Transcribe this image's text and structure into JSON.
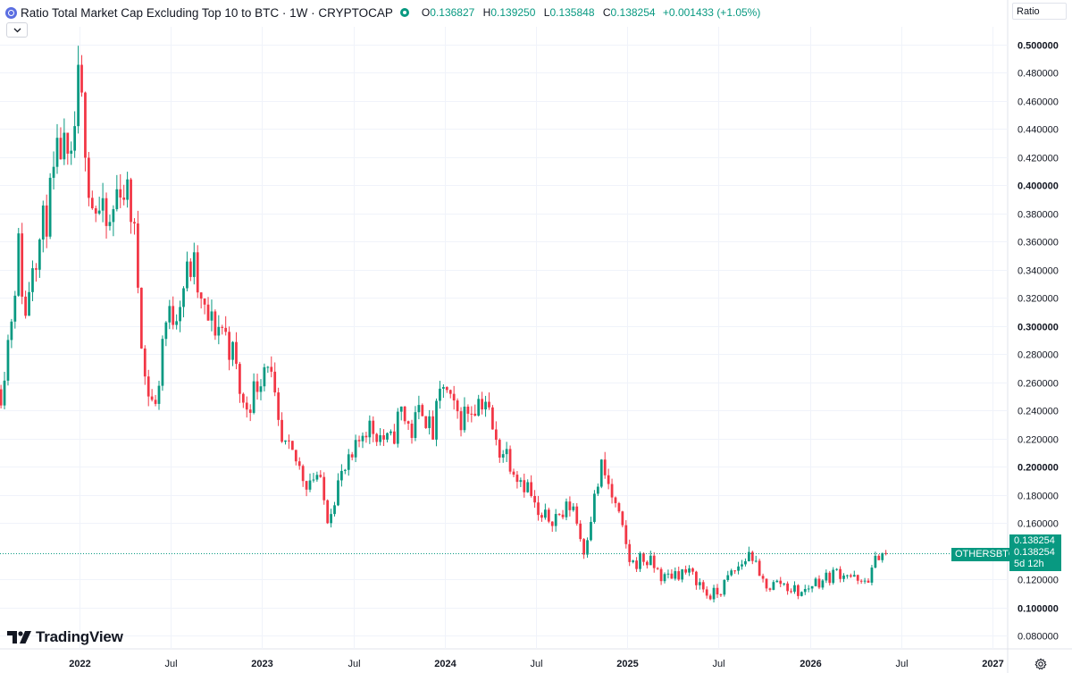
{
  "header": {
    "title": "Ratio Total Market Cap Excluding Top 10 to BTC · 1W · CRYPTOCAP",
    "open_label": "O",
    "open": "0.136827",
    "high_label": "H",
    "high": "0.139250",
    "low_label": "L",
    "low": "0.135848",
    "close_label": "C",
    "close": "0.138254",
    "change": "+0.001433 (+1.05%)",
    "collapse_icon": "chevron-down-icon"
  },
  "scale_button": "Ratio",
  "brand": "TradingView",
  "symbol_label": "OTHERSBTC",
  "last_price": "0.138254",
  "last_price_repeat": "0.138254",
  "countdown": "5d 12h",
  "colors": {
    "up": "#089981",
    "down": "#f23645",
    "grid": "#f0f3fa",
    "text": "#131722"
  },
  "chart_data": {
    "type": "candlestick",
    "interval": "1W",
    "y_ticks": [
      "0.500000",
      "0.480000",
      "0.460000",
      "0.440000",
      "0.420000",
      "0.400000",
      "0.380000",
      "0.360000",
      "0.340000",
      "0.320000",
      "0.300000",
      "0.280000",
      "0.260000",
      "0.240000",
      "0.220000",
      "0.200000",
      "0.180000",
      "0.160000",
      "0.120000",
      "0.100000",
      "0.080000"
    ],
    "y_bold_ticks": [
      "0.500000",
      "0.400000",
      "0.300000",
      "0.200000",
      "0.100000"
    ],
    "ylim": [
      0.075,
      0.505
    ],
    "x_ticks": [
      {
        "label": "2022",
        "t": 2022.0,
        "bold": true
      },
      {
        "label": "Jul",
        "t": 2022.5,
        "bold": false
      },
      {
        "label": "2023",
        "t": 2023.0,
        "bold": true
      },
      {
        "label": "Jul",
        "t": 2023.5,
        "bold": false
      },
      {
        "label": "2024",
        "t": 2024.0,
        "bold": true
      },
      {
        "label": "Jul",
        "t": 2024.5,
        "bold": false
      },
      {
        "label": "2025",
        "t": 2025.0,
        "bold": true
      },
      {
        "label": "Jul",
        "t": 2025.5,
        "bold": false
      },
      {
        "label": "2026",
        "t": 2026.0,
        "bold": true
      },
      {
        "label": "Jul",
        "t": 2026.5,
        "bold": false
      },
      {
        "label": "2027",
        "t": 2027.0,
        "bold": true
      }
    ],
    "xlim": [
      2021.56,
      2027.08
    ],
    "last_close": 0.138254,
    "path_anchors": [
      [
        2021.57,
        0.255
      ],
      [
        2021.62,
        0.3
      ],
      [
        2021.67,
        0.36
      ],
      [
        2021.7,
        0.3
      ],
      [
        2021.74,
        0.35
      ],
      [
        2021.78,
        0.36
      ],
      [
        2021.84,
        0.39
      ],
      [
        2021.9,
        0.43
      ],
      [
        2021.95,
        0.4
      ],
      [
        2021.99,
        0.47
      ],
      [
        2022.03,
        0.44
      ],
      [
        2022.06,
        0.39
      ],
      [
        2022.11,
        0.38
      ],
      [
        2022.16,
        0.365
      ],
      [
        2022.22,
        0.405
      ],
      [
        2022.28,
        0.385
      ],
      [
        2022.31,
        0.35
      ],
      [
        2022.36,
        0.26
      ],
      [
        2022.42,
        0.24
      ],
      [
        2022.46,
        0.3
      ],
      [
        2022.52,
        0.31
      ],
      [
        2022.57,
        0.33
      ],
      [
        2022.62,
        0.345
      ],
      [
        2022.67,
        0.31
      ],
      [
        2022.73,
        0.3
      ],
      [
        2022.78,
        0.3
      ],
      [
        2022.84,
        0.28
      ],
      [
        2022.9,
        0.24
      ],
      [
        2022.96,
        0.255
      ],
      [
        2023.03,
        0.28
      ],
      [
        2023.1,
        0.215
      ],
      [
        2023.18,
        0.205
      ],
      [
        2023.24,
        0.19
      ],
      [
        2023.3,
        0.195
      ],
      [
        2023.36,
        0.165
      ],
      [
        2023.42,
        0.19
      ],
      [
        2023.5,
        0.205
      ],
      [
        2023.56,
        0.23
      ],
      [
        2023.63,
        0.225
      ],
      [
        2023.7,
        0.215
      ],
      [
        2023.76,
        0.24
      ],
      [
        2023.82,
        0.225
      ],
      [
        2023.88,
        0.245
      ],
      [
        2023.93,
        0.22
      ],
      [
        2023.99,
        0.26
      ],
      [
        2024.04,
        0.24
      ],
      [
        2024.09,
        0.235
      ],
      [
        2024.16,
        0.245
      ],
      [
        2024.22,
        0.25
      ],
      [
        2024.28,
        0.215
      ],
      [
        2024.34,
        0.21
      ],
      [
        2024.4,
        0.195
      ],
      [
        2024.46,
        0.185
      ],
      [
        2024.52,
        0.16
      ],
      [
        2024.58,
        0.165
      ],
      [
        2024.64,
        0.165
      ],
      [
        2024.7,
        0.175
      ],
      [
        2024.76,
        0.14
      ],
      [
        2024.8,
        0.165
      ],
      [
        2024.86,
        0.2
      ],
      [
        2024.9,
        0.185
      ],
      [
        2024.96,
        0.16
      ],
      [
        2025.02,
        0.13
      ],
      [
        2025.08,
        0.135
      ],
      [
        2025.14,
        0.13
      ],
      [
        2025.2,
        0.12
      ],
      [
        2025.26,
        0.125
      ],
      [
        2025.32,
        0.125
      ],
      [
        2025.38,
        0.12
      ],
      [
        2025.44,
        0.108
      ],
      [
        2025.5,
        0.11
      ],
      [
        2025.56,
        0.122
      ],
      [
        2025.62,
        0.13
      ],
      [
        2025.68,
        0.14
      ],
      [
        2025.72,
        0.12
      ],
      [
        2025.78,
        0.115
      ],
      [
        2025.84,
        0.118
      ],
      [
        2025.9,
        0.113
      ],
      [
        2025.96,
        0.11
      ],
      [
        2026.02,
        0.118
      ],
      [
        2026.08,
        0.12
      ],
      [
        2026.14,
        0.125
      ],
      [
        2026.2,
        0.125
      ],
      [
        2026.28,
        0.115
      ],
      [
        2026.34,
        0.125
      ],
      [
        2026.38,
        0.14
      ],
      [
        2026.42,
        0.138254
      ]
    ]
  }
}
